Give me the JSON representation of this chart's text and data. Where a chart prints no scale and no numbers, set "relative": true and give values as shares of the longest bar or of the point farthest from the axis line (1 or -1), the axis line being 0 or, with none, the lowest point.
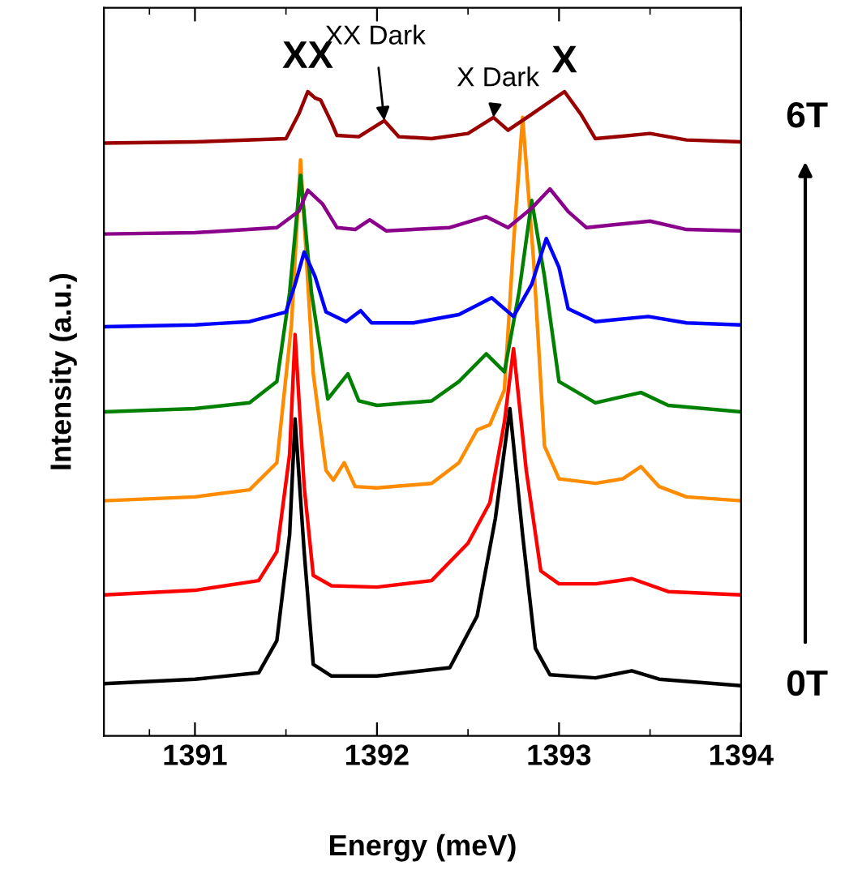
{
  "chart_data": {
    "type": "line",
    "relative": true,
    "xlabel": "Energy (meV)",
    "ylabel": "Intensity (a.u.)",
    "xlim": [
      1390.5,
      1394
    ],
    "xticks": [
      1391,
      1392,
      1393,
      1394
    ],
    "grid": false,
    "legend": false,
    "marker": "none",
    "line_style": "solid",
    "tick_labels": "x",
    "series": [
      {
        "color": "#000000",
        "x": [
          1390.5,
          1391.0,
          1391.35,
          1391.45,
          1391.52,
          1391.55,
          1391.6,
          1391.65,
          1391.75,
          1392.0,
          1392.4,
          1392.55,
          1392.65,
          1392.73,
          1392.8,
          1392.87,
          1392.95,
          1393.2,
          1393.4,
          1393.55,
          1394.0
        ],
        "values": [
          0.081,
          0.088,
          0.098,
          0.148,
          0.312,
          0.492,
          0.286,
          0.111,
          0.093,
          0.093,
          0.106,
          0.186,
          0.337,
          0.508,
          0.312,
          0.136,
          0.095,
          0.09,
          0.101,
          0.088,
          0.078
        ]
      },
      {
        "color": "#ff0000",
        "x": [
          1390.5,
          1391.0,
          1391.35,
          1391.45,
          1391.52,
          1391.55,
          1391.6,
          1391.65,
          1391.75,
          1392.0,
          1392.3,
          1392.5,
          1392.62,
          1392.7,
          1392.75,
          1392.82,
          1392.9,
          1393.0,
          1393.2,
          1393.4,
          1393.6,
          1394.0
        ],
        "values": [
          0.219,
          0.226,
          0.241,
          0.286,
          0.437,
          0.623,
          0.387,
          0.249,
          0.233,
          0.231,
          0.241,
          0.299,
          0.362,
          0.487,
          0.601,
          0.412,
          0.256,
          0.236,
          0.236,
          0.244,
          0.224,
          0.219
        ]
      },
      {
        "color": "#ff8c00",
        "x": [
          1390.5,
          1391.0,
          1391.3,
          1391.45,
          1391.53,
          1391.58,
          1391.65,
          1391.72,
          1391.76,
          1391.82,
          1391.88,
          1392.0,
          1392.3,
          1392.45,
          1392.55,
          1392.62,
          1392.7,
          1392.75,
          1392.8,
          1392.86,
          1392.92,
          1393.0,
          1393.2,
          1393.35,
          1393.45,
          1393.55,
          1393.7,
          1394.0
        ],
        "values": [
          0.365,
          0.371,
          0.382,
          0.424,
          0.638,
          0.894,
          0.562,
          0.412,
          0.397,
          0.424,
          0.387,
          0.385,
          0.392,
          0.424,
          0.475,
          0.483,
          0.537,
          0.764,
          0.96,
          0.739,
          0.45,
          0.399,
          0.392,
          0.399,
          0.418,
          0.387,
          0.371,
          0.365
        ]
      },
      {
        "color": "#008000",
        "x": [
          1390.5,
          1391.0,
          1391.3,
          1391.45,
          1391.52,
          1391.58,
          1391.64,
          1391.73,
          1391.84,
          1391.9,
          1392.0,
          1392.3,
          1392.45,
          1392.6,
          1392.7,
          1392.78,
          1392.85,
          1392.92,
          1393.0,
          1393.2,
          1393.45,
          1393.6,
          1394.0
        ],
        "values": [
          0.503,
          0.508,
          0.517,
          0.55,
          0.688,
          0.87,
          0.688,
          0.523,
          0.562,
          0.52,
          0.513,
          0.52,
          0.55,
          0.593,
          0.565,
          0.688,
          0.831,
          0.713,
          0.55,
          0.517,
          0.533,
          0.513,
          0.503
        ]
      },
      {
        "color": "#0000ff",
        "x": [
          1390.5,
          1391.0,
          1391.3,
          1391.5,
          1391.55,
          1391.6,
          1391.66,
          1391.72,
          1391.83,
          1391.91,
          1391.97,
          1392.2,
          1392.45,
          1392.63,
          1392.75,
          1392.85,
          1392.93,
          1393.0,
          1393.05,
          1393.2,
          1393.49,
          1393.7,
          1394.0
        ],
        "values": [
          0.635,
          0.638,
          0.643,
          0.658,
          0.701,
          0.751,
          0.713,
          0.658,
          0.643,
          0.66,
          0.641,
          0.641,
          0.654,
          0.68,
          0.651,
          0.701,
          0.772,
          0.727,
          0.663,
          0.643,
          0.651,
          0.641,
          0.638
        ]
      },
      {
        "color": "#8b008b",
        "x": [
          1390.5,
          1391.0,
          1391.45,
          1391.57,
          1391.62,
          1391.7,
          1391.78,
          1391.88,
          1391.96,
          1392.05,
          1392.4,
          1392.6,
          1392.72,
          1392.85,
          1392.95,
          1393.05,
          1393.15,
          1393.5,
          1393.7,
          1394.0
        ],
        "values": [
          0.779,
          0.781,
          0.789,
          0.814,
          0.847,
          0.826,
          0.789,
          0.786,
          0.801,
          0.784,
          0.789,
          0.806,
          0.789,
          0.819,
          0.849,
          0.814,
          0.789,
          0.799,
          0.786,
          0.784
        ]
      },
      {
        "color": "#990000",
        "x": [
          1390.5,
          1391.0,
          1391.5,
          1391.57,
          1391.62,
          1391.66,
          1391.69,
          1391.75,
          1391.78,
          1391.9,
          1392.04,
          1392.12,
          1392.3,
          1392.5,
          1392.64,
          1392.72,
          1392.85,
          1393.03,
          1393.12,
          1393.2,
          1393.5,
          1393.7,
          1394.0
        ],
        "values": [
          0.92,
          0.922,
          0.927,
          0.965,
          1.0,
          0.99,
          0.987,
          0.952,
          0.932,
          0.93,
          0.955,
          0.93,
          0.927,
          0.935,
          0.96,
          0.94,
          0.965,
          1.0,
          0.965,
          0.927,
          0.935,
          0.925,
          0.922
        ]
      }
    ],
    "annotations": [
      {
        "text": "XX",
        "x": 1391.62,
        "y": 1.0
      },
      {
        "text": "XX Dark",
        "x": 1392.04,
        "y": 0.955
      },
      {
        "text": "X Dark",
        "x": 1392.64,
        "y": 0.96
      },
      {
        "text": "X",
        "x": 1393.03,
        "y": 1.0
      },
      "6T",
      "0T"
    ]
  }
}
